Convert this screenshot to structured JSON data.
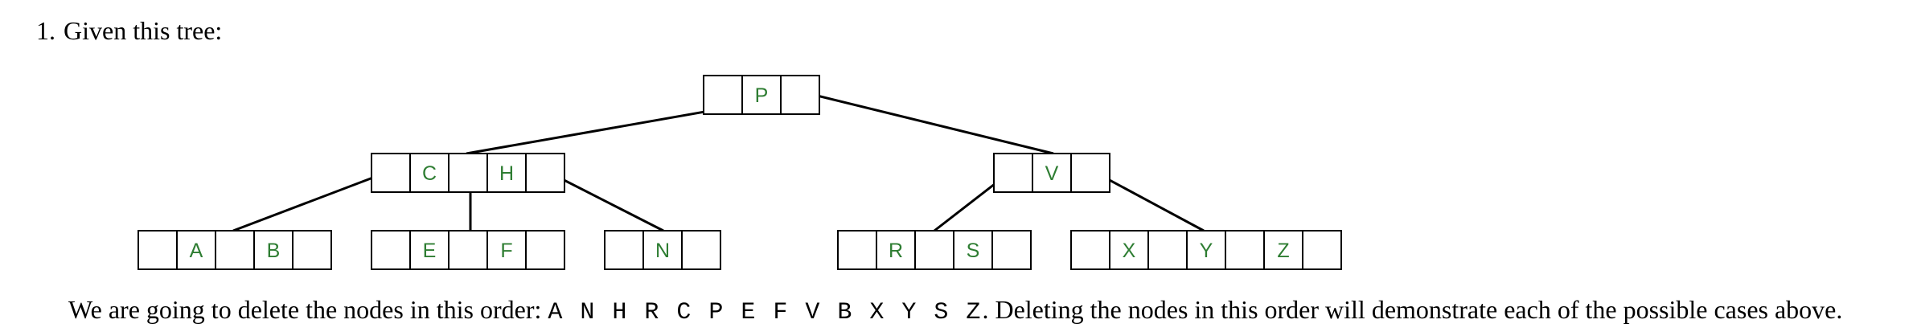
{
  "question": {
    "number": "1.",
    "text": "Given this tree:"
  },
  "tree": {
    "nodes": [
      {
        "id": "root",
        "keys": [
          "",
          "P",
          ""
        ]
      },
      {
        "id": "left-internal",
        "keys": [
          "",
          "C",
          "",
          "H",
          ""
        ]
      },
      {
        "id": "right-internal",
        "keys": [
          "",
          "V",
          ""
        ]
      },
      {
        "id": "leaf-ab",
        "keys": [
          "",
          "A",
          "",
          "B",
          ""
        ]
      },
      {
        "id": "leaf-ef",
        "keys": [
          "",
          "E",
          "",
          "F",
          ""
        ]
      },
      {
        "id": "leaf-n",
        "keys": [
          "",
          "N",
          ""
        ]
      },
      {
        "id": "leaf-rs",
        "keys": [
          "",
          "R",
          "",
          "S",
          ""
        ]
      },
      {
        "id": "leaf-xyz",
        "keys": [
          "",
          "X",
          "",
          "Y",
          "",
          "Z",
          ""
        ]
      }
    ],
    "colors": {
      "key_text": "#2e7d32",
      "box": "#000000",
      "line": "#000000"
    }
  },
  "statement": {
    "before": "We are going to delete the nodes in this order:",
    "order": "A N H R C P E F V B X Y S Z",
    "after": ". Deleting the nodes in this order will demonstrate each of the possible cases above."
  }
}
